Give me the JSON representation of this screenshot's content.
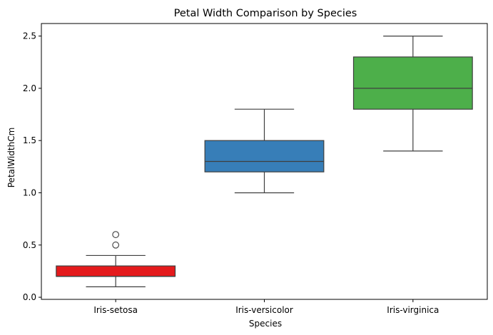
{
  "chart_data": {
    "type": "box",
    "title": "Petal Width Comparison by Species",
    "xlabel": "Species",
    "ylabel": "PetalWidthCm",
    "ylim": [
      -0.02,
      2.62
    ],
    "yticks": [
      0.0,
      0.5,
      1.0,
      1.5,
      2.0,
      2.5
    ],
    "ytick_labels": [
      "0.0",
      "0.5",
      "1.0",
      "1.5",
      "2.0",
      "2.5"
    ],
    "grid": false,
    "categories": [
      "Iris-setosa",
      "Iris-versicolor",
      "Iris-virginica"
    ],
    "boxes": [
      {
        "category": "Iris-setosa",
        "whisker_low": 0.1,
        "q1": 0.2,
        "median": 0.2,
        "q3": 0.3,
        "whisker_high": 0.4,
        "outliers": [
          0.5,
          0.6
        ],
        "color": "#e41a1c"
      },
      {
        "category": "Iris-versicolor",
        "whisker_low": 1.0,
        "q1": 1.2,
        "median": 1.3,
        "q3": 1.5,
        "whisker_high": 1.8,
        "outliers": [],
        "color": "#377eb8"
      },
      {
        "category": "Iris-virginica",
        "whisker_low": 1.4,
        "q1": 1.8,
        "median": 2.0,
        "q3": 2.3,
        "whisker_high": 2.5,
        "outliers": [],
        "color": "#4daf4a"
      }
    ],
    "line_color": "#3f3f3f"
  }
}
